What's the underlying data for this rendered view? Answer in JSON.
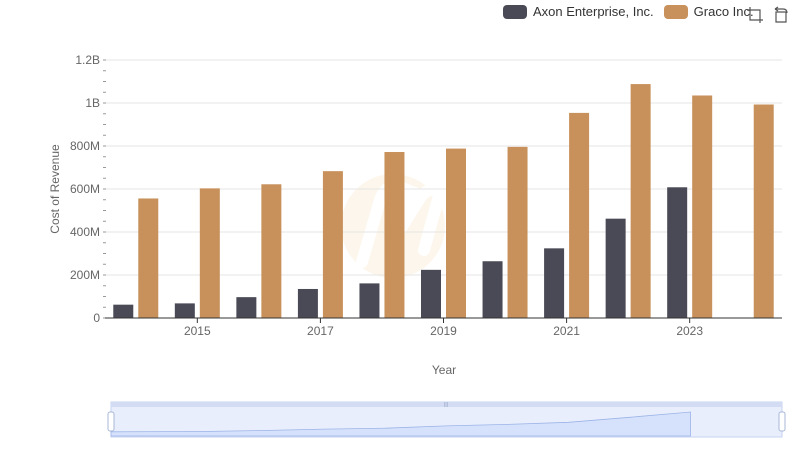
{
  "legend": {
    "series_1": "Axon Enterprise, Inc.",
    "series_2": "Graco Inc."
  },
  "toolbox": {
    "zoom_icon": "zoom-icon",
    "restore_icon": "restore-icon"
  },
  "colors": {
    "series_1": "#4a4a56",
    "series_2": "#c8915c",
    "grid": "#e5e5e5",
    "axis": "#333333",
    "slider_fill": "#d6e2fb",
    "slider_border": "#c6d3ef"
  },
  "chart_data": {
    "type": "bar",
    "x": [
      2014,
      2015,
      2016,
      2017,
      2018,
      2019,
      2020,
      2021,
      2022,
      2023,
      2024
    ],
    "tick_labels": [
      "2015",
      "2017",
      "2019",
      "2021",
      "2023"
    ],
    "y_tick_labels": [
      "0",
      "200M",
      "400M",
      "600M",
      "800M",
      "1B",
      "1.2B"
    ],
    "ylim": [
      0,
      1200000000
    ],
    "xlabel": "Year",
    "ylabel": "Cost of Revenue",
    "legend_position": "top-right",
    "grid": true,
    "series": [
      {
        "name": "Axon Enterprise, Inc.",
        "values": [
          62000000,
          68000000,
          97000000,
          135000000,
          161000000,
          224000000,
          264000000,
          324000000,
          462000000,
          608000000,
          null
        ]
      },
      {
        "name": "Graco Inc.",
        "values": [
          556000000,
          603000000,
          622000000,
          683000000,
          772000000,
          788000000,
          796000000,
          954000000,
          1088000000,
          1035000000,
          993000000
        ]
      }
    ]
  }
}
